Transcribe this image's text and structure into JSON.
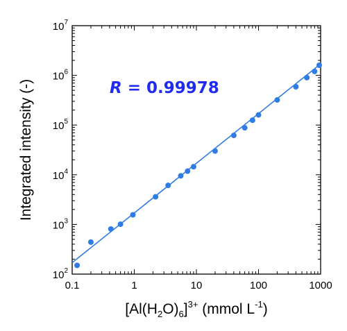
{
  "chart_data": {
    "type": "scatter",
    "x_scale": "log",
    "y_scale": "log",
    "xlim": [
      0.1,
      1000
    ],
    "ylim": [
      100,
      10000000
    ],
    "grid": false,
    "x_ticks": [
      "0.1",
      "1",
      "10",
      "100",
      "1000"
    ],
    "y_ticks": [
      {
        "base": "10",
        "exp": "2"
      },
      {
        "base": "10",
        "exp": "3"
      },
      {
        "base": "10",
        "exp": "4"
      },
      {
        "base": "10",
        "exp": "5"
      },
      {
        "base": "10",
        "exp": "6"
      },
      {
        "base": "10",
        "exp": "7"
      }
    ],
    "xlabel": {
      "p1": "[Al(H",
      "sub1": "2",
      "p2": "O)",
      "sub2": "6",
      "p3": "]",
      "sup1": "3+",
      "p4": " (mmol L",
      "sup2": "-1",
      "p5": ")"
    },
    "ylabel": "Integrated intensity (-)",
    "annotation": {
      "italic": "R",
      "rest": " = 0.99978"
    },
    "series": [
      {
        "color": "#2f7ce4",
        "points": [
          [
            0.12,
            150
          ],
          [
            0.2,
            440
          ],
          [
            0.42,
            810
          ],
          [
            0.6,
            1010
          ],
          [
            0.95,
            1560
          ],
          [
            2.2,
            3600
          ],
          [
            3.5,
            6100
          ],
          [
            5.6,
            9500
          ],
          [
            7.2,
            11800
          ],
          [
            9.0,
            14500
          ],
          [
            20,
            30000
          ],
          [
            40,
            62000
          ],
          [
            60,
            88000
          ],
          [
            80,
            125000
          ],
          [
            100,
            160000
          ],
          [
            200,
            320000
          ],
          [
            400,
            590000
          ],
          [
            600,
            900000
          ],
          [
            800,
            1200000
          ],
          [
            950,
            1600000
          ]
        ],
        "fit": {
          "x1": 0.1,
          "y1": 170,
          "x2": 1000,
          "y2": 1700000
        }
      }
    ],
    "annotation_color": "#1f2cf0"
  }
}
